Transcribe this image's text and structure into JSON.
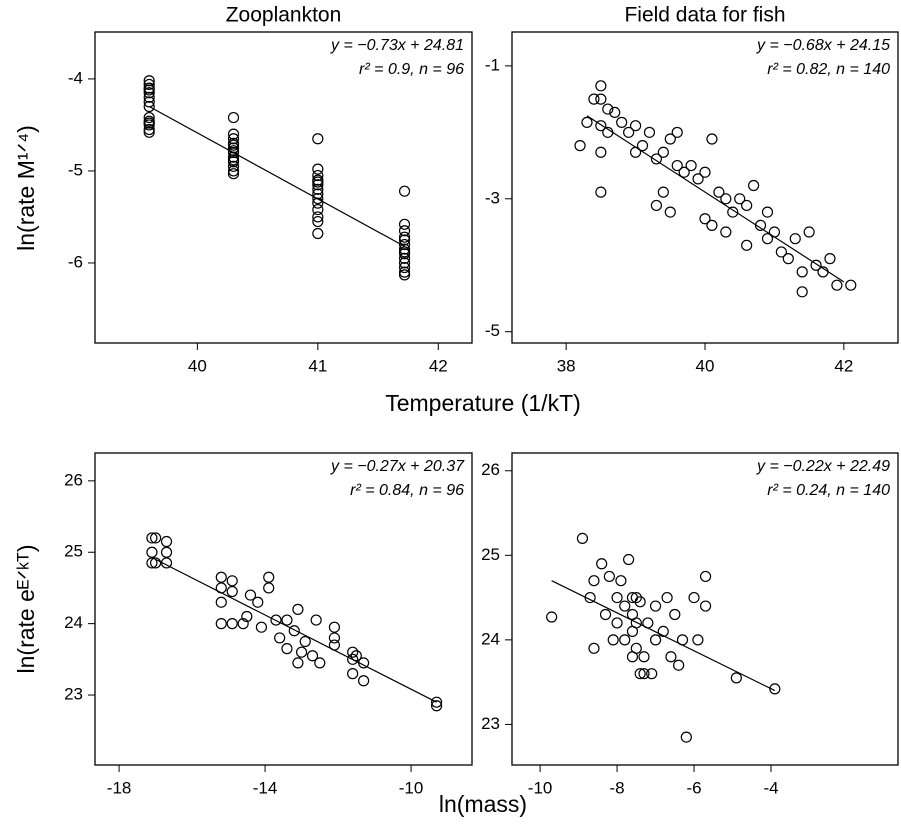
{
  "axis_labels": {
    "x": [
      "Temperature (1/kT)",
      "ln(mass)"
    ],
    "y": [
      "ln(rate M¹ᐟ⁴)",
      "ln(rate eᴱᐟᵏᵀ)"
    ]
  },
  "chart_data": [
    {
      "type": "scatter",
      "title": "Zooplankton",
      "color": "#000000",
      "annotations": [
        "y = −0.73x + 24.81",
        "r² = 0.9, n = 96"
      ],
      "x": [
        39.6,
        39.6,
        39.6,
        39.6,
        39.6,
        39.6,
        39.6,
        39.6,
        39.6,
        39.6,
        39.6,
        39.6,
        39.6,
        39.6,
        40.3,
        40.3,
        40.3,
        40.3,
        40.3,
        40.3,
        40.3,
        40.3,
        40.3,
        40.3,
        40.3,
        40.3,
        40.3,
        40.3,
        41.0,
        41.0,
        41.0,
        41.0,
        41.0,
        41.0,
        41.0,
        41.0,
        41.0,
        41.0,
        41.0,
        41.0,
        41.0,
        41.0,
        41.72,
        41.72,
        41.72,
        41.72,
        41.72,
        41.72,
        41.72,
        41.72,
        41.72,
        41.72,
        41.72,
        41.72,
        41.72,
        41.72
      ],
      "y": [
        -4.02,
        -4.06,
        -4.1,
        -4.15,
        -4.2,
        -4.25,
        -4.3,
        -4.42,
        -4.46,
        -4.5,
        -4.55,
        -4.58,
        -4.12,
        -4.48,
        -4.42,
        -4.6,
        -4.65,
        -4.7,
        -4.75,
        -4.8,
        -4.85,
        -4.9,
        -4.95,
        -5.0,
        -5.03,
        -4.72,
        -4.78,
        -4.88,
        -4.65,
        -4.98,
        -5.05,
        -5.1,
        -5.15,
        -5.2,
        -5.25,
        -5.3,
        -5.35,
        -5.42,
        -5.5,
        -5.55,
        -5.68,
        -5.12,
        -5.22,
        -5.58,
        -5.65,
        -5.72,
        -5.8,
        -5.85,
        -5.9,
        -5.95,
        -6.0,
        -6.05,
        -6.1,
        -6.13,
        -5.75,
        -5.88
      ],
      "fit": {
        "x": [
          39.6,
          41.72
        ],
        "y": [
          -4.3,
          -5.82
        ]
      },
      "xlim": [
        39.15,
        42.28
      ],
      "ylim": [
        -6.87,
        -3.49
      ],
      "xticks": [
        40,
        41,
        42
      ],
      "yticks": [
        -4,
        -5,
        -6
      ]
    },
    {
      "type": "scatter",
      "title": "Field data for fish",
      "color": "#000000",
      "annotations": [
        "y = −0.68x + 24.15",
        "r² = 0.82, n = 140"
      ],
      "x": [
        38.5,
        38.4,
        38.5,
        38.6,
        38.7,
        38.3,
        38.5,
        38.6,
        38.2,
        38.5,
        38.5,
        38.8,
        38.9,
        39.0,
        39.1,
        39.0,
        39.2,
        39.3,
        39.4,
        39.5,
        39.6,
        39.6,
        39.7,
        39.4,
        39.3,
        39.5,
        39.8,
        39.9,
        40.0,
        40.1,
        40.2,
        40.3,
        40.0,
        40.1,
        40.3,
        40.4,
        40.5,
        40.6,
        40.7,
        40.8,
        40.9,
        40.6,
        40.9,
        41.0,
        41.1,
        41.2,
        41.3,
        41.4,
        41.5,
        41.6,
        41.7,
        41.8,
        41.9,
        41.4,
        42.1
      ],
      "y": [
        -1.3,
        -1.5,
        -1.5,
        -1.65,
        -1.7,
        -1.85,
        -1.9,
        -2.0,
        -2.2,
        -2.3,
        -2.9,
        -1.85,
        -2.0,
        -1.9,
        -2.2,
        -2.3,
        -2.0,
        -2.4,
        -2.3,
        -2.1,
        -2.0,
        -2.5,
        -2.6,
        -2.9,
        -3.1,
        -3.2,
        -2.5,
        -2.7,
        -2.6,
        -2.1,
        -2.9,
        -3.0,
        -3.3,
        -3.4,
        -3.5,
        -3.2,
        -3.0,
        -3.1,
        -2.8,
        -3.4,
        -3.6,
        -3.7,
        -3.2,
        -3.5,
        -3.8,
        -3.9,
        -3.6,
        -4.1,
        -3.5,
        -4.0,
        -4.1,
        -3.9,
        -4.3,
        -4.4,
        -4.3
      ],
      "fit": {
        "x": [
          38.3,
          42.0
        ],
        "y": [
          -1.75,
          -4.25
        ]
      },
      "xlim": [
        37.22,
        42.78
      ],
      "ylim": [
        -5.17,
        -0.49
      ],
      "xticks": [
        38,
        40,
        42
      ],
      "yticks": [
        -1,
        -3,
        -5
      ]
    },
    {
      "type": "scatter",
      "color": "#000000",
      "annotations": [
        "y = −0.27x + 20.37",
        "r² = 0.84, n = 96"
      ],
      "x": [
        -17.1,
        -17.0,
        -17.1,
        -17.0,
        -17.1,
        -16.7,
        -16.7,
        -16.7,
        -15.2,
        -15.2,
        -15.2,
        -15.2,
        -14.9,
        -14.9,
        -14.9,
        -14.6,
        -14.5,
        -14.4,
        -14.2,
        -14.1,
        -13.9,
        -13.9,
        -13.7,
        -13.6,
        -13.4,
        -13.4,
        -13.2,
        -13.1,
        -13.1,
        -13.0,
        -12.9,
        -12.7,
        -12.6,
        -12.5,
        -12.1,
        -12.1,
        -12.1,
        -11.6,
        -11.6,
        -11.6,
        -11.5,
        -11.3,
        -11.3,
        -9.3,
        -9.3
      ],
      "y": [
        25.2,
        25.2,
        25.0,
        24.85,
        24.85,
        25.15,
        25.0,
        24.85,
        24.65,
        24.5,
        24.3,
        24.0,
        24.6,
        24.45,
        24.0,
        24.0,
        24.1,
        24.4,
        24.3,
        23.95,
        24.65,
        24.5,
        24.05,
        23.8,
        24.05,
        23.65,
        23.9,
        24.2,
        23.45,
        23.6,
        23.75,
        23.55,
        24.05,
        23.45,
        23.95,
        23.8,
        23.7,
        23.6,
        23.5,
        23.3,
        23.55,
        23.45,
        23.2,
        22.9,
        22.85
      ],
      "fit": {
        "x": [
          -17.0,
          -9.3
        ],
        "y": [
          24.9,
          22.9
        ]
      },
      "xlim": [
        -18.66,
        -8.33
      ],
      "ylim": [
        22.02,
        26.39
      ],
      "xticks": [
        -18,
        -14,
        -10
      ],
      "yticks": [
        26,
        25,
        24,
        23
      ]
    },
    {
      "type": "scatter",
      "color": "#000000",
      "annotations": [
        "y = −0.22x + 22.49",
        "r² = 0.24, n = 140"
      ],
      "x": [
        -9.7,
        -8.9,
        -8.7,
        -8.6,
        -8.4,
        -8.6,
        -8.3,
        -8.2,
        -8.1,
        -8.0,
        -8.0,
        -7.9,
        -7.8,
        -7.8,
        -7.7,
        -7.6,
        -7.6,
        -7.6,
        -7.5,
        -7.5,
        -7.6,
        -7.5,
        -7.4,
        -7.3,
        -7.2,
        -7.1,
        -7.0,
        -7.0,
        -6.8,
        -6.7,
        -6.6,
        -6.5,
        -6.4,
        -6.3,
        -6.2,
        -6.0,
        -5.9,
        -5.7,
        -5.7,
        -4.9,
        -3.9,
        -7.4,
        -7.3
      ],
      "y": [
        24.27,
        25.2,
        24.5,
        24.7,
        24.9,
        23.9,
        24.3,
        24.75,
        24.0,
        24.5,
        24.2,
        24.7,
        24.4,
        24.0,
        24.95,
        24.5,
        24.3,
        24.1,
        24.5,
        24.2,
        23.8,
        23.9,
        23.6,
        23.8,
        24.2,
        23.6,
        24.0,
        24.4,
        24.1,
        24.5,
        23.8,
        24.3,
        23.7,
        24.0,
        22.85,
        24.5,
        24.0,
        24.75,
        24.4,
        23.55,
        23.42,
        24.45,
        23.6
      ],
      "fit": {
        "x": [
          -9.7,
          -3.9
        ],
        "y": [
          24.7,
          23.4
        ]
      },
      "xlim": [
        -10.73,
        -0.7
      ],
      "ylim": [
        22.52,
        26.21
      ],
      "xticks": [
        -10,
        -8,
        -6,
        -4
      ],
      "yticks": [
        26,
        25,
        24,
        23
      ]
    }
  ]
}
